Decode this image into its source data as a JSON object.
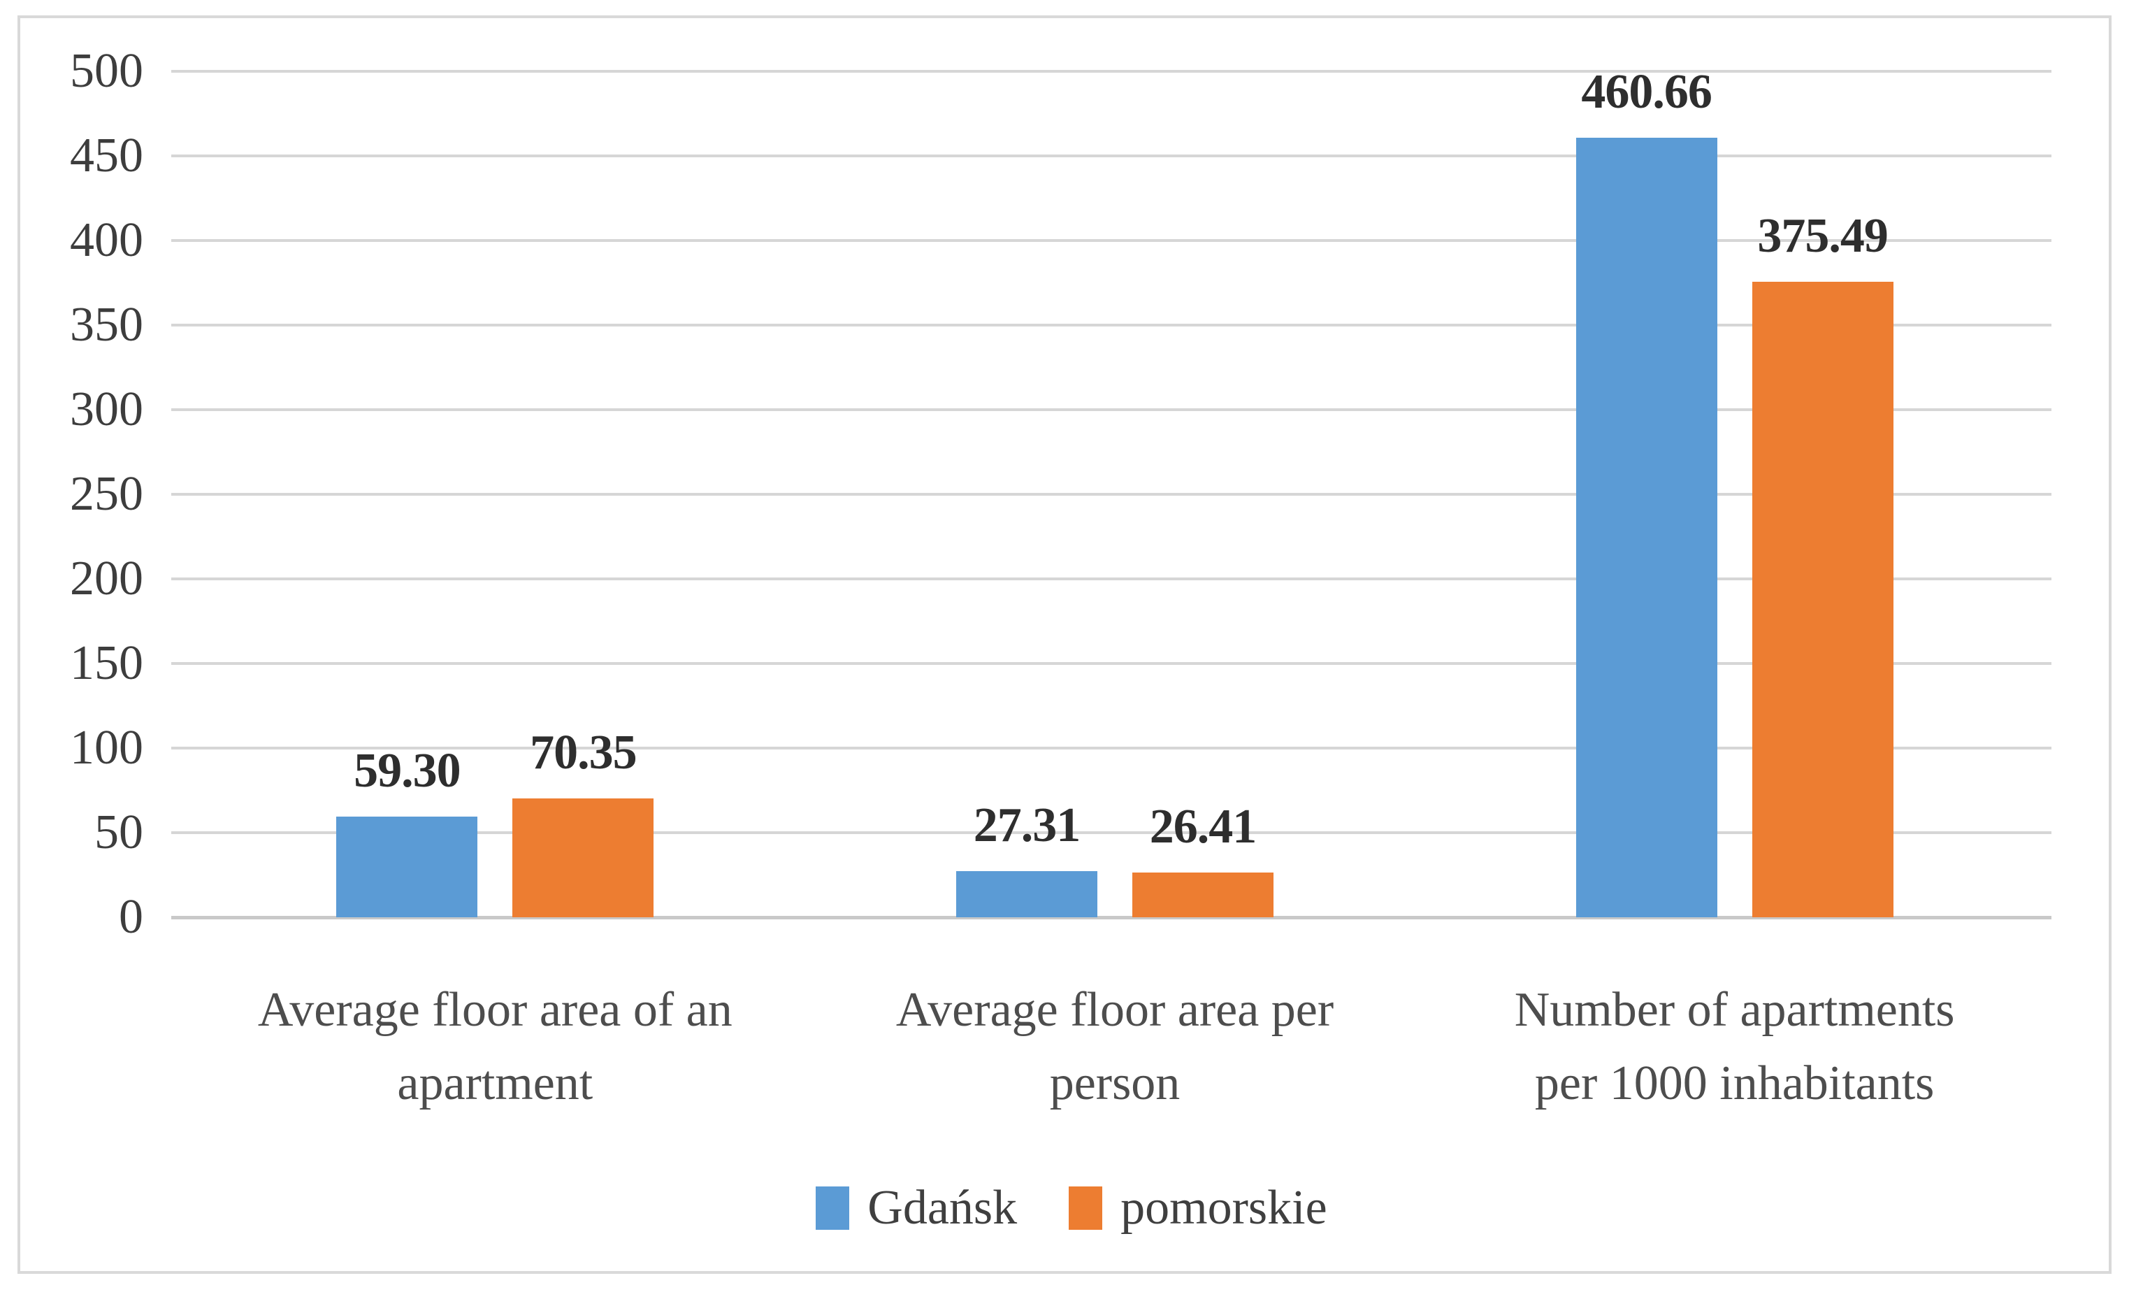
{
  "chart_data": {
    "type": "bar",
    "title": "",
    "categories": [
      "Average floor area of an apartment",
      "Average floor area per person",
      "Number of apartments per 1000 inhabitants"
    ],
    "category_lines": [
      [
        "Average floor area of an",
        "apartment"
      ],
      [
        "Average floor area per",
        "person"
      ],
      [
        "Number of apartments",
        "per 1000 inhabitants"
      ]
    ],
    "series": [
      {
        "name": "Gdańsk",
        "color": "#5B9BD5",
        "values": [
          59.3,
          27.31,
          460.66
        ]
      },
      {
        "name": "pomorskie",
        "color": "#ED7D31",
        "values": [
          70.35,
          26.41,
          375.49
        ]
      }
    ],
    "data_labels": [
      [
        "59.30",
        "27.31",
        "460.66"
      ],
      [
        "70.35",
        "26.41",
        "375.49"
      ]
    ],
    "xlabel": "",
    "ylabel": "",
    "ylim": [
      0,
      500
    ],
    "ytick_step": 50,
    "yticks": [
      "0",
      "50",
      "100",
      "150",
      "200",
      "250",
      "300",
      "350",
      "400",
      "450",
      "500"
    ],
    "grid": true,
    "legend_position": "bottom",
    "colors": {
      "grid": "#D6D6D6",
      "axis_line": "#C9C9C9",
      "tick_label": "#3D3D3D",
      "category_label": "#4D4D4D",
      "data_label": "#2E2E2E",
      "frame_border": "#D9D9D9",
      "background": "#FFFFFF"
    }
  }
}
